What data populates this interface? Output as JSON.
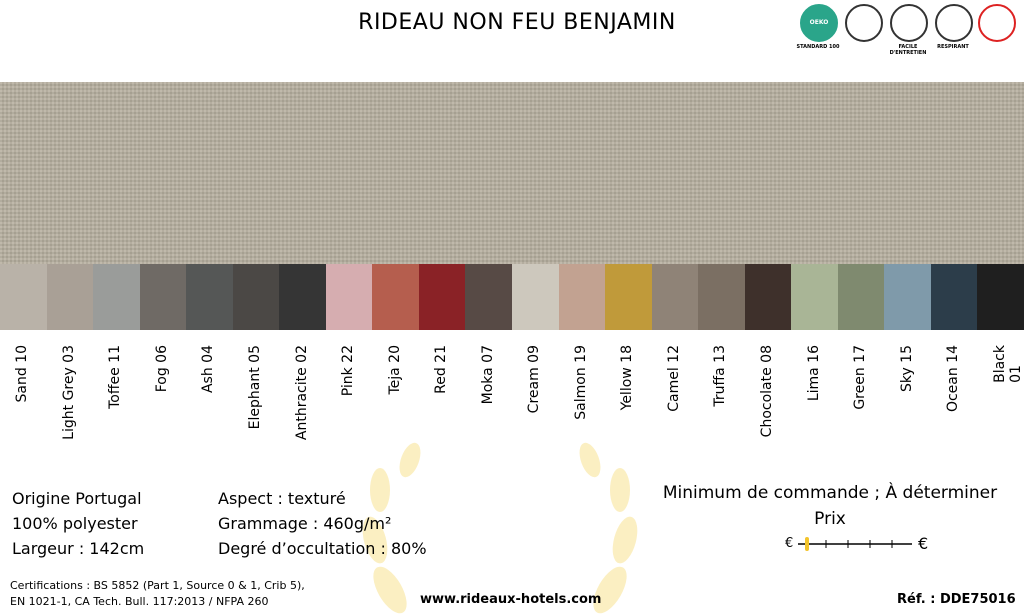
{
  "header": {
    "title": "RIDEAU NON FEU BENJAMIN",
    "badges": [
      {
        "text": "OEKO TEX®",
        "caption": "STANDARD 100"
      },
      {
        "caption": "FACILE D'ENTRETIEN"
      },
      {
        "caption": "RESPIRANT"
      }
    ]
  },
  "swatches": [
    {
      "name": "Sand 10",
      "color": "#b9b2a8"
    },
    {
      "name": "Light Grey 03",
      "color": "#a9a096"
    },
    {
      "name": "Toffee 11",
      "color": "#9a9c9a"
    },
    {
      "name": "Fog 06",
      "color": "#6f6a65"
    },
    {
      "name": "Ash 04",
      "color": "#555756"
    },
    {
      "name": "Elephant 05",
      "color": "#4b4845"
    },
    {
      "name": "Anthracite 02",
      "color": "#353535"
    },
    {
      "name": "Pink 22",
      "color": "#d6adb0"
    },
    {
      "name": "Teja 20",
      "color": "#b55e4e"
    },
    {
      "name": "Red 21",
      "color": "#8a2226"
    },
    {
      "name": "Moka 07",
      "color": "#574a45"
    },
    {
      "name": "Cream 09",
      "color": "#cdc8bd"
    },
    {
      "name": "Salmon 19",
      "color": "#c2a291"
    },
    {
      "name": "Yellow 18",
      "color": "#c09a3a"
    },
    {
      "name": "Camel 12",
      "color": "#8f8377"
    },
    {
      "name": "Truffa 13",
      "color": "#7b6f63"
    },
    {
      "name": "Chocolate 08",
      "color": "#3e302b"
    },
    {
      "name": "Lima 16",
      "color": "#a9b596"
    },
    {
      "name": "Green 17",
      "color": "#7f8a6f"
    },
    {
      "name": "Sky 15",
      "color": "#7f9aaa"
    },
    {
      "name": "Ocean 14",
      "color": "#2c3d4a"
    },
    {
      "name": "Black 01",
      "color": "#1f1f1f"
    }
  ],
  "details_left": [
    "Origine Portugal",
    "100% polyester",
    "Largeur : 142cm"
  ],
  "details_middle": [
    "Aspect : texturé",
    "Grammage : 460g/m²",
    "Degré d’occultation : 80%"
  ],
  "order": {
    "minimum": "Minimum de commande ; À déterminer",
    "price_label": "Prix",
    "scale_min": "€",
    "scale_max": "€"
  },
  "footer": {
    "certifications": [
      "Certifications : BS 5852 (Part 1, Source 0 & 1, Crib 5),",
      "EN 1021-1, CA Tech. Bull. 117:2013 / NFPA 260"
    ],
    "website": "www.rideaux-hotels.com",
    "reference": "Réf. : DDE75016"
  }
}
